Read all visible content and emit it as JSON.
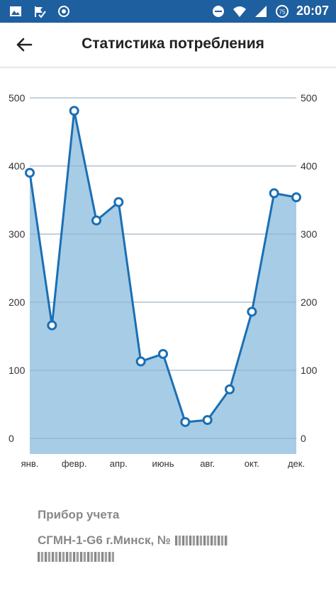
{
  "status_bar": {
    "time": "20:07",
    "battery_level": "75",
    "left_icons": [
      "image-icon",
      "checkmark-flag-icon",
      "record-icon"
    ],
    "right_icons": [
      "do-not-disturb-icon",
      "wifi-icon",
      "signal-icon",
      "battery-icon"
    ]
  },
  "header": {
    "title": "Статистика потребления"
  },
  "chart_data": {
    "type": "area",
    "categories": [
      "янв.",
      "",
      "февр.",
      "",
      "апр.",
      "",
      "июнь",
      "",
      "авг.",
      "",
      "окт.",
      "",
      "дек."
    ],
    "months": 12,
    "x_tick_labels": [
      "янв.",
      "февр.",
      "апр.",
      "июнь",
      "авг.",
      "окт.",
      "дек."
    ],
    "values": [
      390,
      166,
      481,
      320,
      347,
      113,
      124,
      24,
      27,
      72,
      186,
      360,
      354
    ],
    "ylim": [
      0,
      500
    ],
    "y_ticks": [
      0,
      100,
      200,
      300,
      400,
      500
    ],
    "left_axis_labels": [
      "0",
      "100",
      "200",
      "300",
      "400",
      "500"
    ],
    "right_axis_labels": [
      "0",
      "100",
      "200",
      "300",
      "400",
      "500"
    ],
    "grid": true,
    "line_color": "#1a6fb4",
    "fill_color": "#a7cce6"
  },
  "meter": {
    "label": "Прибор учета",
    "value": "СГМН-1-G6 г.Минск, №"
  }
}
